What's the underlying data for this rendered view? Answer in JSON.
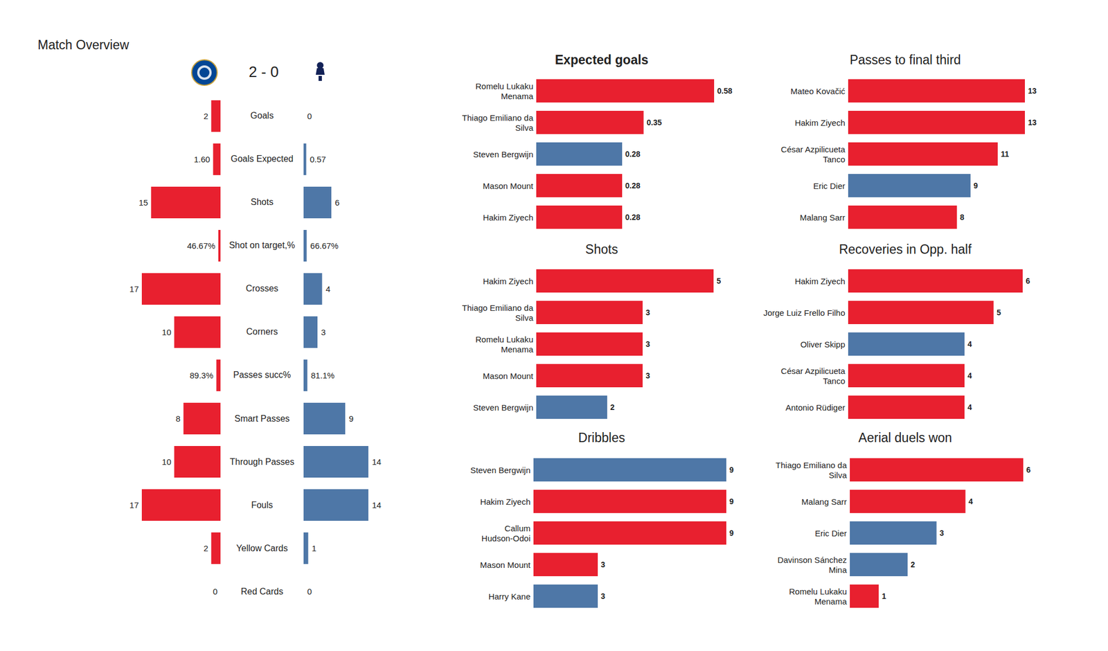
{
  "chart_data": [
    {
      "type": "bar",
      "title": "Match Overview",
      "subtitle": "2 - 0",
      "orientation": "horizontal",
      "categories": [
        "Goals",
        "Goals Expected",
        "Shots",
        "Shot on target,%",
        "Crosses",
        "Corners",
        "Passes succ%",
        "Smart Passes",
        "Through Passes",
        "Fouls",
        "Yellow Cards",
        "Red Cards"
      ],
      "series": [
        {
          "color": "#e8202f",
          "values": [
            2,
            1.6,
            15,
            0.4667,
            17,
            10,
            0.893,
            8,
            10,
            17,
            2,
            0
          ],
          "value_labels": [
            "2",
            "1.60",
            "15",
            "46.67%",
            "17",
            "10",
            "89.3%",
            "8",
            "10",
            "17",
            "2",
            "0"
          ]
        },
        {
          "color": "#4e77a7",
          "values": [
            0,
            0.57,
            6,
            0.6667,
            4,
            3,
            0.811,
            9,
            14,
            14,
            1,
            0
          ],
          "value_labels": [
            "0",
            "0.57",
            "6",
            "66.67%",
            "4",
            "3",
            "81.1%",
            "9",
            "14",
            "14",
            "1",
            "0"
          ]
        }
      ],
      "xlim": [
        0,
        17
      ],
      "data_labels": true,
      "tick_labels": false
    },
    {
      "type": "bar",
      "title": "Expected goals",
      "orientation": "horizontal",
      "categories": [
        "Romelu Lukaku\nMenama",
        "Thiago Emiliano da\nSilva",
        "Steven Bergwijn",
        "Mason Mount",
        "Hakim Ziyech"
      ],
      "values": [
        0.58,
        0.35,
        0.28,
        0.28,
        0.28
      ],
      "colors": [
        "#e8202f",
        "#e8202f",
        "#4e77a7",
        "#e8202f",
        "#e8202f"
      ],
      "xlim": [
        0,
        0.58
      ],
      "data_labels": true,
      "tick_labels": "y"
    },
    {
      "type": "bar",
      "title": "Shots",
      "orientation": "horizontal",
      "categories": [
        "Hakim Ziyech",
        "Thiago Emiliano da\nSilva",
        "Romelu Lukaku\nMenama",
        "Mason Mount",
        "Steven Bergwijn"
      ],
      "values": [
        5,
        3,
        3,
        3,
        2
      ],
      "colors": [
        "#e8202f",
        "#e8202f",
        "#e8202f",
        "#e8202f",
        "#4e77a7"
      ],
      "xlim": [
        0,
        5
      ],
      "data_labels": true,
      "tick_labels": "y"
    },
    {
      "type": "bar",
      "title": "Dribbles",
      "orientation": "horizontal",
      "categories": [
        "Steven Bergwijn",
        "Hakim Ziyech",
        "Callum\nHudson-Odoi",
        "Mason Mount",
        "Harry Kane"
      ],
      "values": [
        9,
        9,
        9,
        3,
        3
      ],
      "colors": [
        "#4e77a7",
        "#e8202f",
        "#e8202f",
        "#e8202f",
        "#4e77a7"
      ],
      "xlim": [
        0,
        9
      ],
      "data_labels": true,
      "tick_labels": "y"
    },
    {
      "type": "bar",
      "title": "Passes to final third",
      "orientation": "horizontal",
      "categories": [
        "Mateo Kovačić",
        "Hakim Ziyech",
        "César Azpilicueta\nTanco",
        "Eric Dier",
        "Malang Sarr"
      ],
      "values": [
        13,
        13,
        11,
        9,
        8
      ],
      "colors": [
        "#e8202f",
        "#e8202f",
        "#e8202f",
        "#4e77a7",
        "#e8202f"
      ],
      "xlim": [
        0,
        13
      ],
      "data_labels": true,
      "tick_labels": "y"
    },
    {
      "type": "bar",
      "title": "Recoveries in Opp. half",
      "orientation": "horizontal",
      "categories": [
        "Hakim Ziyech",
        "Jorge Luiz Frello Filho",
        "Oliver Skipp",
        "César Azpilicueta\nTanco",
        "Antonio Rüdiger"
      ],
      "values": [
        6,
        5,
        4,
        4,
        4
      ],
      "colors": [
        "#e8202f",
        "#e8202f",
        "#4e77a7",
        "#e8202f",
        "#e8202f"
      ],
      "xlim": [
        0,
        6
      ],
      "data_labels": true,
      "tick_labels": "y"
    },
    {
      "type": "bar",
      "title": "Aerial duels won",
      "orientation": "horizontal",
      "categories": [
        "Thiago Emiliano da\nSilva",
        "Malang Sarr",
        "Eric Dier",
        "Davinson Sánchez\nMina",
        "Romelu Lukaku\nMenama"
      ],
      "values": [
        6,
        4,
        3,
        2,
        1
      ],
      "colors": [
        "#e8202f",
        "#e8202f",
        "#4e77a7",
        "#4e77a7",
        "#e8202f"
      ],
      "xlim": [
        0,
        6
      ],
      "data_labels": true,
      "tick_labels": "y"
    }
  ]
}
